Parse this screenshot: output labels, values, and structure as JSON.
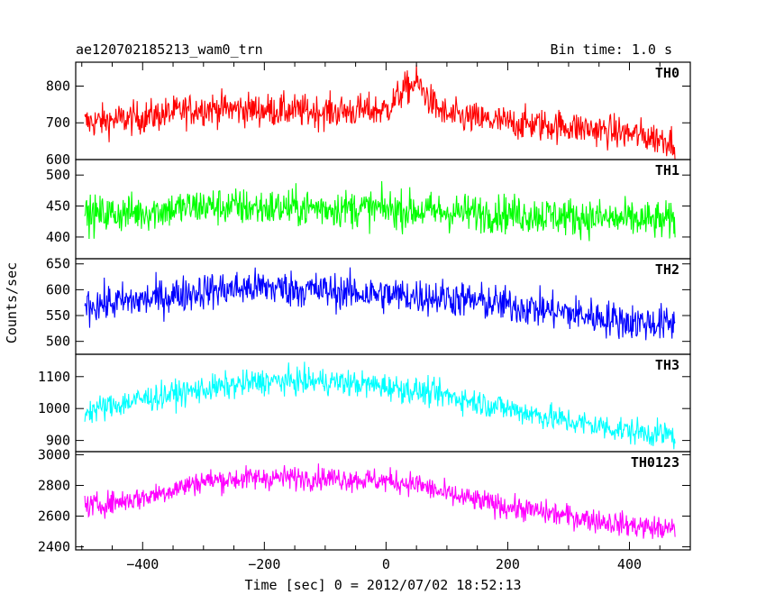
{
  "chart_data": {
    "type": "line",
    "title": "ae120702185213_wam0_trn",
    "bin_time_label": "Bin time: 1.0 s",
    "xlabel": "Time [sec] 0 = 2012/07/02 18:52:13",
    "ylabel": "Counts/sec",
    "xlim": [
      -510,
      500
    ],
    "x_ticks": [
      -400,
      -200,
      0,
      200,
      400
    ],
    "x_tick_labels": [
      "−400",
      "−200",
      "0",
      "200",
      "400"
    ],
    "x_range_data": [
      -495,
      475
    ],
    "panels": [
      {
        "name": "TH0",
        "color": "#ff0000",
        "ylim": [
          600,
          865
        ],
        "y_ticks": [
          600,
          700,
          800
        ],
        "y_tick_labels": [
          "600",
          "700",
          "800"
        ],
        "trend": [
          [
            -495,
            700
          ],
          [
            -400,
            715
          ],
          [
            -300,
            740
          ],
          [
            -200,
            735
          ],
          [
            -100,
            730
          ],
          [
            0,
            735
          ],
          [
            30,
            790
          ],
          [
            50,
            810
          ],
          [
            80,
            745
          ],
          [
            100,
            720
          ],
          [
            200,
            700
          ],
          [
            300,
            690
          ],
          [
            400,
            670
          ],
          [
            475,
            650
          ]
        ],
        "noise": 38
      },
      {
        "name": "TH1",
        "color": "#00ff00",
        "ylim": [
          365,
          525
        ],
        "y_ticks": [
          400,
          450,
          500
        ],
        "y_tick_labels": [
          "400",
          "450",
          "500"
        ],
        "trend": [
          [
            -495,
            435
          ],
          [
            -400,
            440
          ],
          [
            -300,
            450
          ],
          [
            -200,
            447
          ],
          [
            -100,
            447
          ],
          [
            0,
            445
          ],
          [
            100,
            440
          ],
          [
            200,
            438
          ],
          [
            300,
            433
          ],
          [
            400,
            428
          ],
          [
            475,
            425
          ]
        ],
        "noise": 26
      },
      {
        "name": "TH2",
        "color": "#0000ff",
        "ylim": [
          475,
          660
        ],
        "y_ticks": [
          500,
          550,
          600,
          650
        ],
        "y_tick_labels": [
          "500",
          "550",
          "600",
          "650"
        ],
        "trend": [
          [
            -495,
            570
          ],
          [
            -400,
            580
          ],
          [
            -300,
            598
          ],
          [
            -200,
            605
          ],
          [
            -100,
            598
          ],
          [
            0,
            590
          ],
          [
            100,
            585
          ],
          [
            200,
            570
          ],
          [
            300,
            555
          ],
          [
            400,
            538
          ],
          [
            475,
            533
          ]
        ],
        "noise": 30
      },
      {
        "name": "TH3",
        "color": "#00ffff",
        "ylim": [
          865,
          1170
        ],
        "y_ticks": [
          900,
          1000,
          1100
        ],
        "y_tick_labels": [
          "900",
          "1000",
          "1100"
        ],
        "trend": [
          [
            -495,
            990
          ],
          [
            -400,
            1030
          ],
          [
            -300,
            1060
          ],
          [
            -200,
            1085
          ],
          [
            -100,
            1085
          ],
          [
            0,
            1070
          ],
          [
            100,
            1040
          ],
          [
            200,
            1000
          ],
          [
            300,
            960
          ],
          [
            400,
            930
          ],
          [
            475,
            915
          ]
        ],
        "noise": 35
      },
      {
        "name": "TH0123",
        "color": "#ff00ff",
        "ylim": [
          2380,
          3020
        ],
        "y_ticks": [
          2400,
          2600,
          2800,
          3000
        ],
        "y_tick_labels": [
          "2400",
          "2600",
          "2800",
          "3000"
        ],
        "trend": [
          [
            -495,
            2660
          ],
          [
            -400,
            2720
          ],
          [
            -300,
            2830
          ],
          [
            -200,
            2850
          ],
          [
            -100,
            2850
          ],
          [
            0,
            2830
          ],
          [
            50,
            2810
          ],
          [
            100,
            2740
          ],
          [
            200,
            2660
          ],
          [
            300,
            2600
          ],
          [
            400,
            2540
          ],
          [
            475,
            2510
          ]
        ],
        "noise": 65
      }
    ]
  }
}
